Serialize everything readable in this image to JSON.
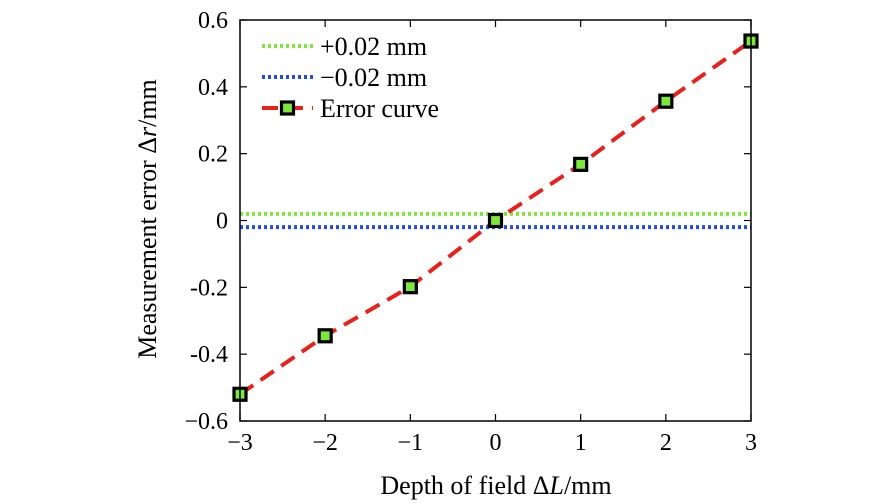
{
  "chart_data": {
    "type": "line",
    "title": "",
    "xlabel_prefix": "Depth of field Δ",
    "xlabel_var": "L",
    "xlabel_unit": "/mm",
    "ylabel_prefix": "Measurement error Δ",
    "ylabel_var": "r",
    "ylabel_unit": "/mm",
    "xlim": [
      -3,
      3
    ],
    "ylim": [
      -0.6,
      0.6
    ],
    "xticks": [
      -3,
      -2,
      -1,
      0,
      1,
      2,
      3
    ],
    "xtick_labels": [
      "−3",
      "−2",
      "−1",
      "0",
      "1",
      "2",
      "3"
    ],
    "yticks": [
      -0.6,
      -0.4,
      -0.2,
      0,
      0.2,
      0.4,
      0.6
    ],
    "ytick_labels": [
      "−0.6",
      "-0.4",
      "-0.2",
      "0",
      "0.2",
      "0.4",
      "0.6"
    ],
    "grid": false,
    "legend_position": "top-left",
    "series": [
      {
        "name": "+0.02 mm",
        "style": "dotted",
        "color": "#7ee83a",
        "x": [
          -3,
          3
        ],
        "y": [
          0.02,
          0.02
        ]
      },
      {
        "name": "−0.02 mm",
        "style": "dotted",
        "color": "#1f4fe0",
        "x": [
          -3,
          3
        ],
        "y": [
          -0.02,
          -0.02
        ]
      },
      {
        "name": "Error curve",
        "style": "dashed",
        "color": "#e8211d",
        "marker": "square",
        "marker_edge": "#000000",
        "marker_fill": "#7ee83a",
        "x": [
          -3,
          -2,
          -1,
          0,
          1,
          2,
          3
        ],
        "y": [
          -0.52,
          -0.345,
          -0.198,
          0.0,
          0.168,
          0.357,
          0.537
        ]
      }
    ]
  }
}
